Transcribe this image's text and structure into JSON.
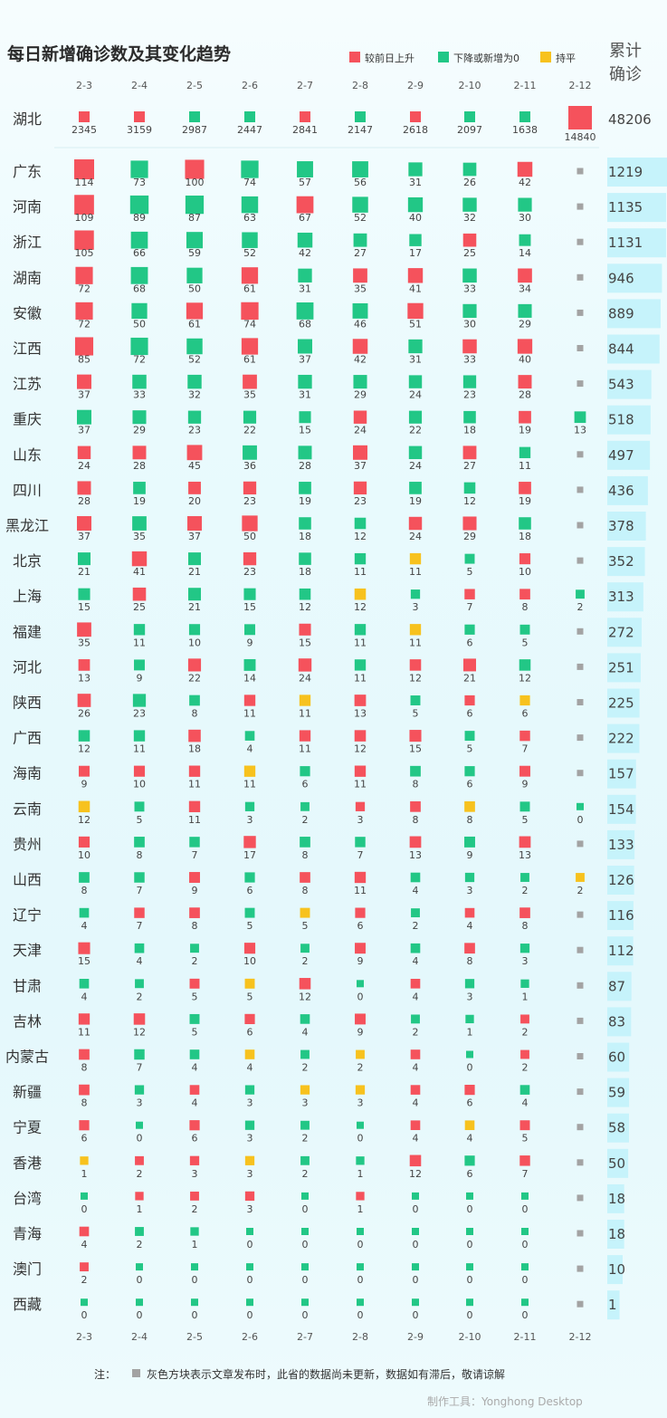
{
  "chart_data": {
    "type": "heatmap",
    "title": "每日新增确诊数及其变化趋势",
    "legend": [
      {
        "label": "较前日上升",
        "color": "#f5525c"
      },
      {
        "label": "下降或新增为0",
        "color": "#22c786"
      },
      {
        "label": "持平",
        "color": "#f7c21e"
      }
    ],
    "pending_color": "#a3a3a3",
    "cum_title_line1": "累计",
    "cum_title_line2": "确诊",
    "dates": [
      "2-3",
      "2-4",
      "2-5",
      "2-6",
      "2-7",
      "2-8",
      "2-9",
      "2-10",
      "2-11",
      "2-12"
    ],
    "series": [
      {
        "name": "湖北",
        "total": 48206,
        "values": [
          2345,
          3159,
          2987,
          2447,
          2841,
          2147,
          2618,
          2097,
          1638,
          14840
        ],
        "trend": "RRGGRGRGGR"
      },
      {
        "name": "广东",
        "total": 1219,
        "values": [
          114,
          73,
          100,
          74,
          57,
          56,
          31,
          26,
          42,
          null
        ],
        "trend": "RGRGGGGGRN"
      },
      {
        "name": "河南",
        "total": 1135,
        "values": [
          109,
          89,
          87,
          63,
          67,
          52,
          40,
          32,
          30,
          null
        ],
        "trend": "RGGGRGGGGN"
      },
      {
        "name": "浙江",
        "total": 1131,
        "values": [
          105,
          66,
          59,
          52,
          42,
          27,
          17,
          25,
          14,
          null
        ],
        "trend": "RGGGGGGRGN"
      },
      {
        "name": "湖南",
        "total": 946,
        "values": [
          72,
          68,
          50,
          61,
          31,
          35,
          41,
          33,
          34,
          null
        ],
        "trend": "RGGRGRRGRN"
      },
      {
        "name": "安徽",
        "total": 889,
        "values": [
          72,
          50,
          61,
          74,
          68,
          46,
          51,
          30,
          29,
          null
        ],
        "trend": "RGRRGGRGGN"
      },
      {
        "name": "江西",
        "total": 844,
        "values": [
          85,
          72,
          52,
          61,
          37,
          42,
          31,
          33,
          40,
          null
        ],
        "trend": "RGGRGRGRRN"
      },
      {
        "name": "江苏",
        "total": 543,
        "values": [
          37,
          33,
          32,
          35,
          31,
          29,
          24,
          23,
          28,
          null
        ],
        "trend": "RGGRGGGGRN"
      },
      {
        "name": "重庆",
        "total": 518,
        "values": [
          37,
          29,
          23,
          22,
          15,
          24,
          22,
          18,
          19,
          13
        ],
        "trend": "GGGGGRGGRG"
      },
      {
        "name": "山东",
        "total": 497,
        "values": [
          24,
          28,
          45,
          36,
          28,
          37,
          24,
          27,
          11,
          null
        ],
        "trend": "RRRGGRGRGN"
      },
      {
        "name": "四川",
        "total": 436,
        "values": [
          28,
          19,
          20,
          23,
          19,
          23,
          19,
          12,
          19,
          null
        ],
        "trend": "RGRRGRGGRN"
      },
      {
        "name": "黑龙江",
        "total": 378,
        "values": [
          37,
          35,
          37,
          50,
          18,
          12,
          24,
          29,
          18,
          null
        ],
        "trend": "RGRRGGRRGN"
      },
      {
        "name": "北京",
        "total": 352,
        "values": [
          21,
          41,
          21,
          23,
          18,
          11,
          11,
          5,
          10,
          null
        ],
        "trend": "GRGRGGYGRN"
      },
      {
        "name": "上海",
        "total": 313,
        "values": [
          15,
          25,
          21,
          15,
          12,
          12,
          3,
          7,
          8,
          2
        ],
        "trend": "GRGGGYGRRG"
      },
      {
        "name": "福建",
        "total": 272,
        "values": [
          35,
          11,
          10,
          9,
          15,
          11,
          11,
          6,
          5,
          null
        ],
        "trend": "RGGGRGYGGN"
      },
      {
        "name": "河北",
        "total": 251,
        "values": [
          13,
          9,
          22,
          14,
          24,
          11,
          12,
          21,
          12,
          null
        ],
        "trend": "RGRGRGRRGN"
      },
      {
        "name": "陕西",
        "total": 225,
        "values": [
          26,
          23,
          8,
          11,
          11,
          13,
          5,
          6,
          6,
          null
        ],
        "trend": "RGGRYRGRYN"
      },
      {
        "name": "广西",
        "total": 222,
        "values": [
          12,
          11,
          18,
          4,
          11,
          12,
          15,
          5,
          7,
          null
        ],
        "trend": "GGRGRRRGRN"
      },
      {
        "name": "海南",
        "total": 157,
        "values": [
          9,
          10,
          11,
          11,
          6,
          11,
          8,
          6,
          9,
          null
        ],
        "trend": "RRRYGRGGRN"
      },
      {
        "name": "云南",
        "total": 154,
        "values": [
          12,
          5,
          11,
          3,
          2,
          3,
          8,
          8,
          5,
          0
        ],
        "trend": "YGRGGRRYGG"
      },
      {
        "name": "贵州",
        "total": 133,
        "values": [
          10,
          8,
          7,
          17,
          8,
          7,
          13,
          9,
          13,
          null
        ],
        "trend": "RGGRGGRGRN"
      },
      {
        "name": "山西",
        "total": 126,
        "values": [
          8,
          7,
          9,
          6,
          8,
          11,
          4,
          3,
          2,
          2
        ],
        "trend": "GGRGRRGGGY"
      },
      {
        "name": "辽宁",
        "total": 116,
        "values": [
          4,
          7,
          8,
          5,
          5,
          6,
          2,
          4,
          8,
          null
        ],
        "trend": "GRRGYRGRRN"
      },
      {
        "name": "天津",
        "total": 112,
        "values": [
          15,
          4,
          2,
          10,
          2,
          9,
          4,
          8,
          3,
          null
        ],
        "trend": "RGGRGRGRGN"
      },
      {
        "name": "甘肃",
        "total": 87,
        "values": [
          4,
          2,
          5,
          5,
          12,
          0,
          4,
          3,
          1,
          null
        ],
        "trend": "GGRYRGRGGN"
      },
      {
        "name": "吉林",
        "total": 83,
        "values": [
          11,
          12,
          5,
          6,
          4,
          9,
          2,
          1,
          2,
          null
        ],
        "trend": "RRGRGRGGRN"
      },
      {
        "name": "内蒙古",
        "total": 60,
        "values": [
          8,
          7,
          4,
          4,
          2,
          2,
          4,
          0,
          2,
          null
        ],
        "trend": "RGGYGYRGRN"
      },
      {
        "name": "新疆",
        "total": 59,
        "values": [
          8,
          3,
          4,
          3,
          3,
          3,
          4,
          6,
          4,
          null
        ],
        "trend": "RGRGYYRRGN"
      },
      {
        "name": "宁夏",
        "total": 58,
        "values": [
          6,
          0,
          6,
          3,
          2,
          0,
          4,
          4,
          5,
          null
        ],
        "trend": "RGRGGGRYRN"
      },
      {
        "name": "香港",
        "total": 50,
        "values": [
          1,
          2,
          3,
          3,
          2,
          1,
          12,
          6,
          7,
          null
        ],
        "trend": "YRRYGGRGRN"
      },
      {
        "name": "台湾",
        "total": 18,
        "values": [
          0,
          1,
          2,
          3,
          0,
          1,
          0,
          0,
          0,
          null
        ],
        "trend": "GRRRGRGGGN"
      },
      {
        "name": "青海",
        "total": 18,
        "values": [
          4,
          2,
          1,
          0,
          0,
          0,
          0,
          0,
          0,
          null
        ],
        "trend": "RGGGGGGGGN"
      },
      {
        "name": "澳门",
        "total": 10,
        "values": [
          2,
          0,
          0,
          0,
          0,
          0,
          0,
          0,
          0,
          null
        ],
        "trend": "RGGGGGGGGN"
      },
      {
        "name": "西藏",
        "total": 1,
        "values": [
          0,
          0,
          0,
          0,
          0,
          0,
          0,
          0,
          0,
          null
        ],
        "trend": "GGGGGGGGGN"
      }
    ],
    "note_prefix": "注：",
    "note_text": "灰色方块表示文章发布时，此省的数据尚未更新，数据如有滞后，敬请谅解",
    "credit": "制作工具：Yonghong Desktop"
  }
}
